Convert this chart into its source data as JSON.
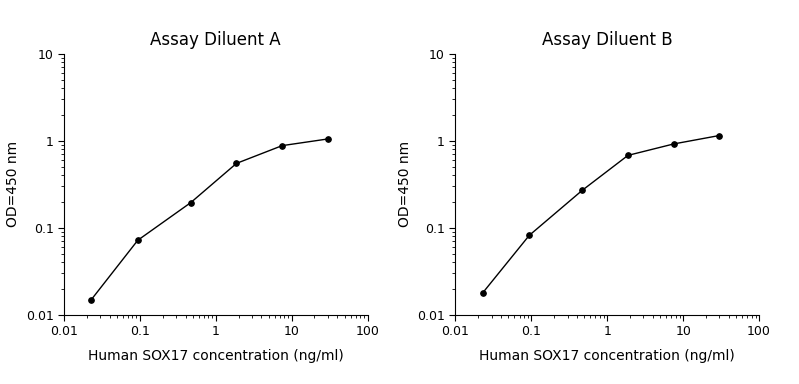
{
  "panel_A": {
    "title": "Assay Diluent A",
    "x": [
      0.023,
      0.094,
      0.469,
      1.875,
      7.5,
      30
    ],
    "y": [
      0.015,
      0.072,
      0.195,
      0.55,
      0.88,
      1.05
    ],
    "xlim": [
      0.01,
      100
    ],
    "ylim": [
      0.01,
      10
    ],
    "xlabel": "Human SOX17 concentration (ng/ml)",
    "ylabel": "OD=450 nm"
  },
  "panel_B": {
    "title": "Assay Diluent B",
    "x": [
      0.023,
      0.094,
      0.469,
      1.875,
      7.5,
      30
    ],
    "y": [
      0.018,
      0.082,
      0.27,
      0.68,
      0.92,
      1.15
    ],
    "xlim": [
      0.01,
      100
    ],
    "ylim": [
      0.01,
      10
    ],
    "xlabel": "Human SOX17 concentration (ng/ml)",
    "ylabel": "OD=450 nm"
  },
  "line_color": "#000000",
  "marker": "o",
  "marker_size": 4,
  "marker_facecolor": "#000000",
  "title_fontsize": 12,
  "label_fontsize": 10,
  "tick_fontsize": 9,
  "background_color": "#ffffff",
  "font_family": "DejaVu Sans"
}
